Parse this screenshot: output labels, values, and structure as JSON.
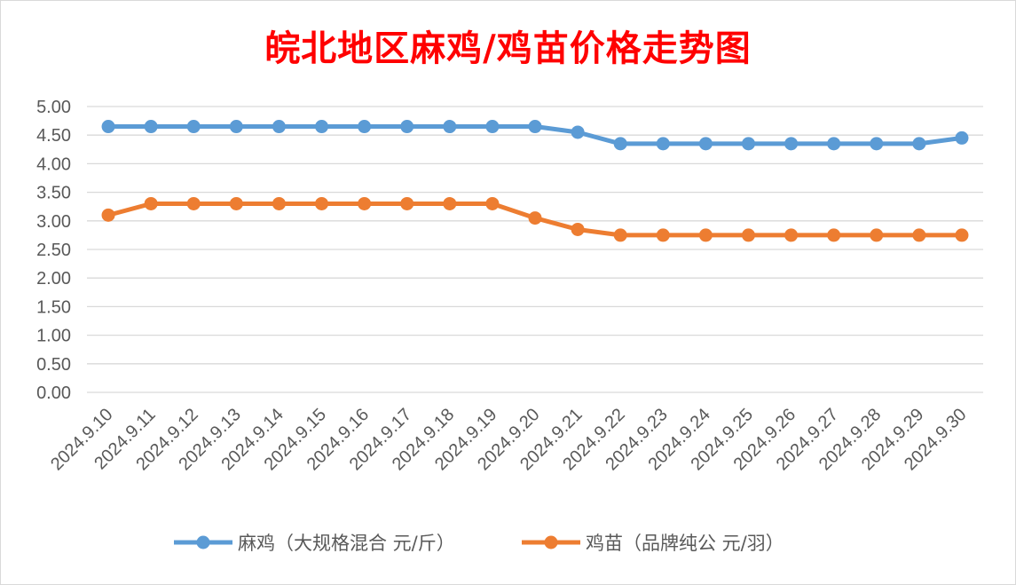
{
  "chart_data": {
    "type": "line",
    "title": "皖北地区麻鸡/鸡苗价格走势图",
    "categories": [
      "2024.9.10",
      "2024.9.11",
      "2024.9.12",
      "2024.9.13",
      "2024.9.14",
      "2024.9.15",
      "2024.9.16",
      "2024.9.17",
      "2024.9.18",
      "2024.9.19",
      "2024.9.20",
      "2024.9.21",
      "2024.9.22",
      "2024.9.23",
      "2024.9.24",
      "2024.9.25",
      "2024.9.26",
      "2024.9.27",
      "2024.9.28",
      "2024.9.29",
      "2024.9.30"
    ],
    "series": [
      {
        "name": "麻鸡（大规格混合 元/斤）",
        "color": "#5b9bd5",
        "values": [
          4.65,
          4.65,
          4.65,
          4.65,
          4.65,
          4.65,
          4.65,
          4.65,
          4.65,
          4.65,
          4.65,
          4.55,
          4.35,
          4.35,
          4.35,
          4.35,
          4.35,
          4.35,
          4.35,
          4.35,
          4.45
        ]
      },
      {
        "name": "鸡苗（品牌纯公 元/羽）",
        "color": "#ed7d31",
        "values": [
          3.1,
          3.3,
          3.3,
          3.3,
          3.3,
          3.3,
          3.3,
          3.3,
          3.3,
          3.3,
          3.05,
          2.85,
          2.75,
          2.75,
          2.75,
          2.75,
          2.75,
          2.75,
          2.75,
          2.75,
          2.75
        ]
      }
    ],
    "ylim": [
      0,
      5
    ],
    "yticks": [
      "0.00",
      "0.50",
      "1.00",
      "1.50",
      "2.00",
      "2.50",
      "3.00",
      "3.50",
      "4.00",
      "4.50",
      "5.00"
    ],
    "grid": true,
    "legend": "bottom",
    "title_color": "#ff0000"
  }
}
